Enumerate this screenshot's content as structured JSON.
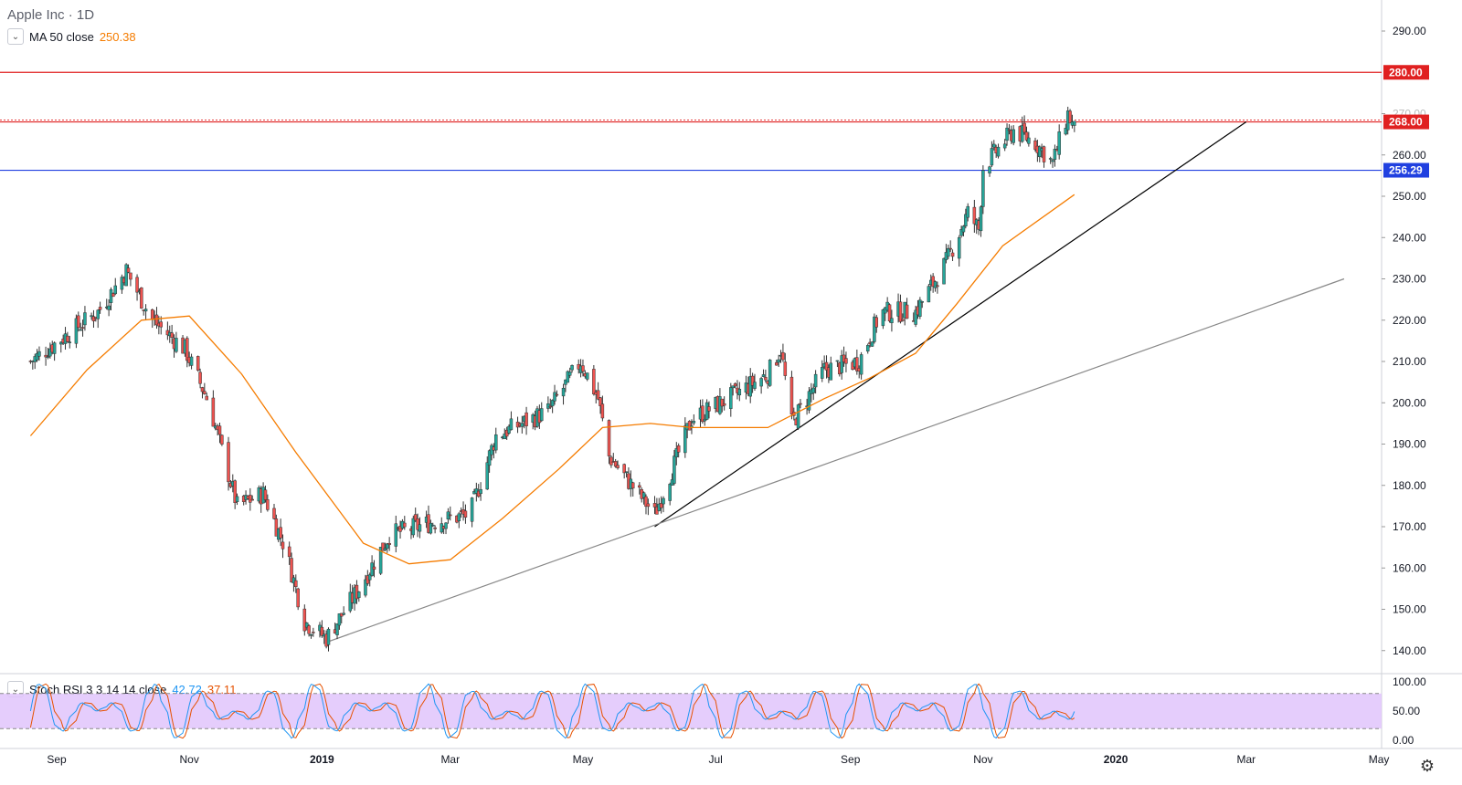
{
  "header": {
    "title": "Apple Inc · 1D",
    "ma_label": "MA 50 close",
    "ma_value": "250.38",
    "stoch_label": "Stoch RSI 3 3 14 14 close",
    "stoch_k": "42.72",
    "stoch_d": "37.11"
  },
  "colors": {
    "up": "#26a69a",
    "down": "#ef5350",
    "ma": "#f57c00",
    "support_line": "#2040e0",
    "resistance_line": "#e02020",
    "stoch_k": "#2196f3",
    "stoch_d": "#e65100",
    "stoch_band": "#e1c4fb"
  },
  "icons": {
    "collapse": "chevron-down-icon",
    "settings": "gear-icon"
  },
  "chart_data": [
    {
      "type": "candlestick",
      "title": "Apple Inc · 1D",
      "y_ticks": [
        "290.00",
        "270.00",
        "260.00",
        "250.00",
        "240.00",
        "230.00",
        "220.00",
        "210.00",
        "200.00",
        "190.00",
        "180.00",
        "170.00",
        "160.00",
        "150.00",
        "140.00"
      ],
      "x_ticks": [
        "Sep",
        "Nov",
        "2019",
        "Mar",
        "May",
        "Jul",
        "Sep",
        "Nov",
        "2020",
        "Mar",
        "May"
      ],
      "ylim": [
        133,
        293
      ],
      "grid": false,
      "horizontal_levels": [
        {
          "label": "280.00",
          "value": 280,
          "color": "#e02020"
        },
        {
          "label": "268.00",
          "value": 268,
          "color": "#e02020"
        },
        {
          "label": "256.29",
          "value": 256.29,
          "color": "#2040e0"
        }
      ],
      "trendlines": [
        {
          "from": [
            "2019-06-03",
            170
          ],
          "to": [
            "2020-03-01",
            268
          ],
          "color": "#000000"
        },
        {
          "from": [
            "2019-01-03",
            142
          ],
          "to": [
            "2020-04-15",
            230
          ],
          "color": "#888888"
        }
      ],
      "price_anchors": [
        [
          "2018-08-20",
          210
        ],
        [
          "2018-09-20",
          222
        ],
        [
          "2018-10-03",
          232
        ],
        [
          "2018-10-15",
          220
        ],
        [
          "2018-10-30",
          213
        ],
        [
          "2018-11-10",
          200
        ],
        [
          "2018-11-23",
          175
        ],
        [
          "2018-12-05",
          178
        ],
        [
          "2018-12-15",
          165
        ],
        [
          "2018-12-24",
          147
        ],
        [
          "2019-01-03",
          143
        ],
        [
          "2019-01-18",
          155
        ],
        [
          "2019-02-01",
          168
        ],
        [
          "2019-02-20",
          171
        ],
        [
          "2019-03-10",
          173
        ],
        [
          "2019-03-22",
          192
        ],
        [
          "2019-04-15",
          198
        ],
        [
          "2019-04-30",
          210
        ],
        [
          "2019-05-08",
          201
        ],
        [
          "2019-05-13",
          187
        ],
        [
          "2019-06-03",
          173
        ],
        [
          "2019-06-20",
          196
        ],
        [
          "2019-07-10",
          202
        ],
        [
          "2019-07-25",
          207
        ],
        [
          "2019-07-31",
          213
        ],
        [
          "2019-08-05",
          195
        ],
        [
          "2019-08-20",
          208
        ],
        [
          "2019-09-05",
          210
        ],
        [
          "2019-09-15",
          222
        ],
        [
          "2019-10-01",
          222
        ],
        [
          "2019-10-15",
          234
        ],
        [
          "2019-10-25",
          246
        ],
        [
          "2019-10-30",
          242
        ],
        [
          "2019-11-01",
          257
        ],
        [
          "2019-11-15",
          266
        ],
        [
          "2019-11-25",
          263
        ],
        [
          "2019-12-03",
          258
        ],
        [
          "2019-12-10",
          270
        ],
        [
          "2019-12-13",
          266
        ]
      ],
      "ma50": {
        "name": "MA 50 close",
        "value": 250.38,
        "anchors": [
          [
            "2018-08-20",
            192
          ],
          [
            "2018-09-15",
            208
          ],
          [
            "2018-10-10",
            220
          ],
          [
            "2018-11-01",
            221
          ],
          [
            "2018-11-25",
            207
          ],
          [
            "2018-12-20",
            188
          ],
          [
            "2019-01-20",
            166
          ],
          [
            "2019-02-10",
            161
          ],
          [
            "2019-03-01",
            162
          ],
          [
            "2019-03-25",
            172
          ],
          [
            "2019-04-20",
            184
          ],
          [
            "2019-05-10",
            194
          ],
          [
            "2019-06-01",
            195
          ],
          [
            "2019-06-20",
            194
          ],
          [
            "2019-07-10",
            194
          ],
          [
            "2019-07-25",
            194
          ],
          [
            "2019-08-20",
            201
          ],
          [
            "2019-09-10",
            206
          ],
          [
            "2019-10-01",
            212
          ],
          [
            "2019-10-20",
            224
          ],
          [
            "2019-11-10",
            238
          ],
          [
            "2019-12-13",
            250.4
          ]
        ]
      }
    },
    {
      "type": "line",
      "title": "Stoch RSI 3 3 14 14 close",
      "y_ticks": [
        "100.00",
        "50.00",
        "0.00"
      ],
      "ylim": [
        -5,
        105
      ],
      "bands": [
        80,
        20
      ],
      "series": [
        {
          "name": "K",
          "last": 42.72
        },
        {
          "name": "D",
          "last": 37.11
        }
      ]
    }
  ]
}
